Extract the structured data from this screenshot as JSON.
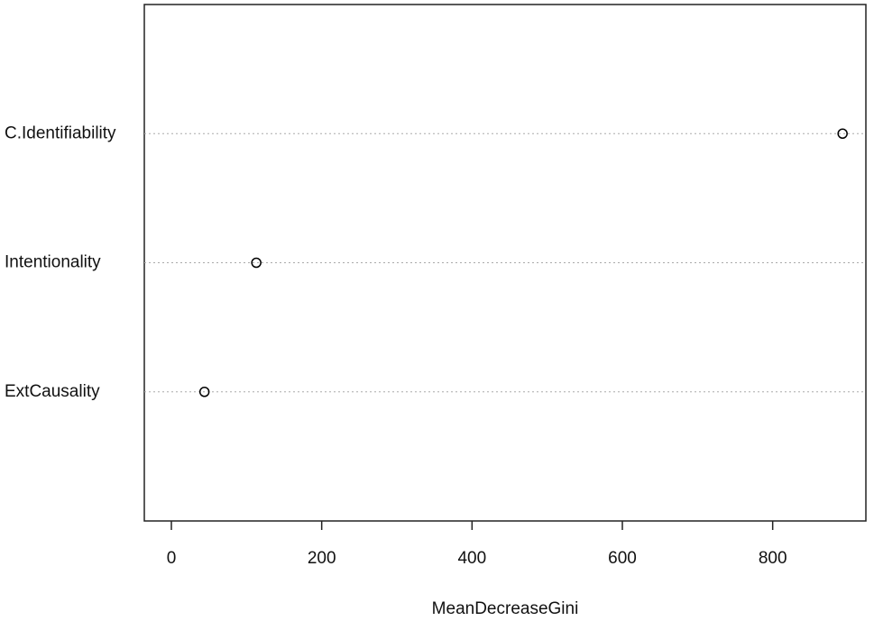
{
  "chart_data": {
    "type": "dot",
    "xlabel": "MeanDecreaseGini",
    "categories": [
      "C.Identifiability",
      "Intentionality",
      "ExtCausality"
    ],
    "values": [
      893,
      113,
      44
    ],
    "xlim": [
      -36,
      924
    ],
    "xticks": [
      0,
      200,
      400,
      600,
      800
    ],
    "grid": true,
    "color": "#000000"
  }
}
